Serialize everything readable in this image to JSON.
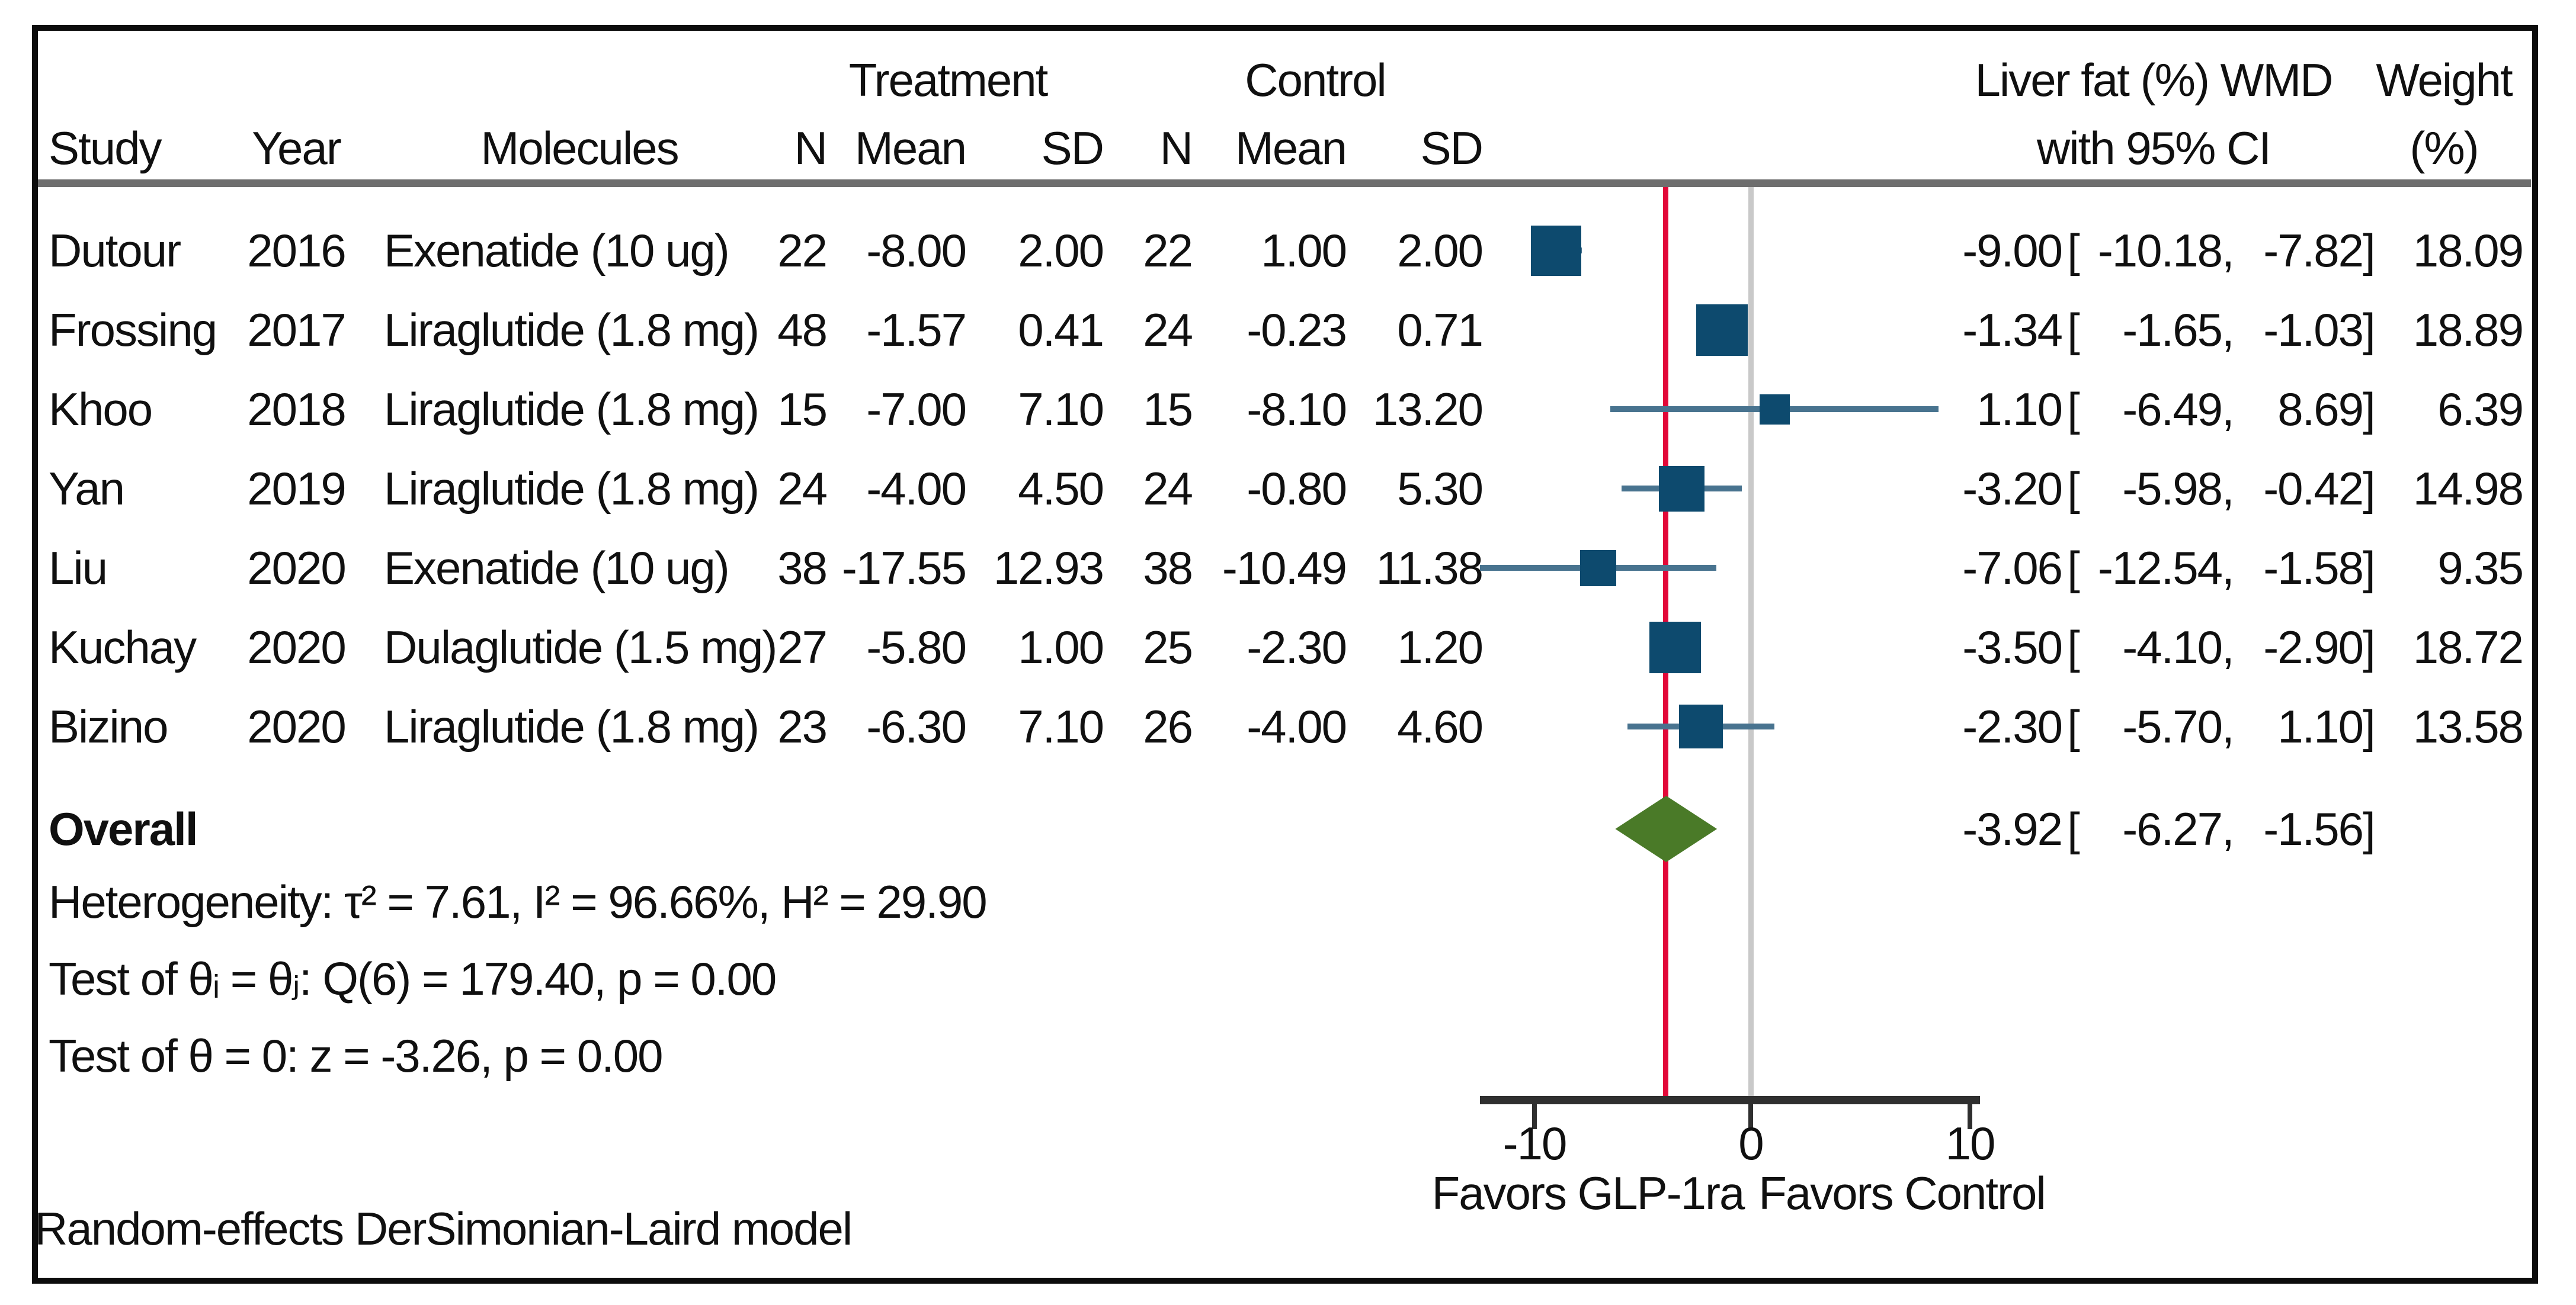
{
  "header": {
    "group_treatment": "Treatment",
    "group_control": "Control",
    "col_study": "Study",
    "col_year": "Year",
    "col_molecules": "Molecules",
    "col_n": "N",
    "col_mean": "Mean",
    "col_sd": "SD",
    "effect_line1": "Liver fat (%) WMD",
    "effect_line2": "with 95% CI",
    "weight_line1": "Weight",
    "weight_line2": "(%)"
  },
  "studies": [
    {
      "study": "Dutour",
      "year": "2016",
      "molecules": "Exenatide (10 ug)",
      "n_t": "22",
      "mean_t": "-8.00",
      "sd_t": "2.00",
      "n_c": "22",
      "mean_c": "1.00",
      "sd_c": "2.00",
      "est": "-9.00",
      "lo": "-10.18",
      "hi": "-7.82",
      "weight": "18.09"
    },
    {
      "study": "Frossing",
      "year": "2017",
      "molecules": "Liraglutide (1.8 mg)",
      "n_t": "48",
      "mean_t": "-1.57",
      "sd_t": "0.41",
      "n_c": "24",
      "mean_c": "-0.23",
      "sd_c": "0.71",
      "est": "-1.34",
      "lo": "-1.65",
      "hi": "-1.03",
      "weight": "18.89"
    },
    {
      "study": "Khoo",
      "year": "2018",
      "molecules": "Liraglutide (1.8 mg)",
      "n_t": "15",
      "mean_t": "-7.00",
      "sd_t": "7.10",
      "n_c": "15",
      "mean_c": "-8.10",
      "sd_c": "13.20",
      "est": "1.10",
      "lo": "-6.49",
      "hi": "8.69",
      "weight": "6.39"
    },
    {
      "study": "Yan",
      "year": "2019",
      "molecules": "Liraglutide (1.8 mg)",
      "n_t": "24",
      "mean_t": "-4.00",
      "sd_t": "4.50",
      "n_c": "24",
      "mean_c": "-0.80",
      "sd_c": "5.30",
      "est": "-3.20",
      "lo": "-5.98",
      "hi": "-0.42",
      "weight": "14.98"
    },
    {
      "study": "Liu",
      "year": "2020",
      "molecules": "Exenatide (10 ug)",
      "n_t": "38",
      "mean_t": "-17.55",
      "sd_t": "12.93",
      "n_c": "38",
      "mean_c": "-10.49",
      "sd_c": "11.38",
      "est": "-7.06",
      "lo": "-12.54",
      "hi": "-1.58",
      "weight": "9.35"
    },
    {
      "study": "Kuchay",
      "year": "2020",
      "molecules": "Dulaglutide (1.5 mg)",
      "n_t": "27",
      "mean_t": "-5.80",
      "sd_t": "1.00",
      "n_c": "25",
      "mean_c": "-2.30",
      "sd_c": "1.20",
      "est": "-3.50",
      "lo": "-4.10",
      "hi": "-2.90",
      "weight": "18.72"
    },
    {
      "study": "Bizino",
      "year": "2020",
      "molecules": "Liraglutide (1.8 mg)",
      "n_t": "23",
      "mean_t": "-6.30",
      "sd_t": "7.10",
      "n_c": "26",
      "mean_c": "-4.00",
      "sd_c": "4.60",
      "est": "-2.30",
      "lo": "-5.70",
      "hi": "1.10",
      "weight": "13.58"
    }
  ],
  "overall": {
    "label": "Overall",
    "est": "-3.92",
    "lo": "-6.27",
    "hi": "-1.56"
  },
  "stats": {
    "heterogeneity": "Heterogeneity: τ² = 7.61, I² = 96.66%, H² = 29.90",
    "test_q": "Test of θᵢ = θⱼ: Q(6) = 179.40, p = 0.00",
    "test_z": "Test of θ = 0: z = -3.26, p = 0.00"
  },
  "axis": {
    "ticks": [
      "-10",
      "0",
      "10"
    ],
    "favors_left": "Favors GLP-1ra",
    "favors_right": "Favors Control"
  },
  "footnote": "Random-effects DerSimonian-Laird model",
  "colors": {
    "marker": "#0d4a6e",
    "ci": "#48738f",
    "diamond": "#4a7a28",
    "pooled": "#e20839",
    "zero": "#c9c9c9"
  },
  "chart_data": {
    "type": "forest",
    "title": "Liver fat (%) WMD with 95% CI",
    "xlabel_ticks": [
      -10,
      0,
      10
    ],
    "xlim": [
      -12.54,
      10.5
    ],
    "zero_reference": 0,
    "pooled_reference": -3.92,
    "favors_left": "Favors GLP-1ra",
    "favors_right": "Favors Control",
    "studies": [
      {
        "name": "Dutour 2016",
        "est": -9.0,
        "lo": -10.18,
        "hi": -7.82,
        "weight": 18.09
      },
      {
        "name": "Frossing 2017",
        "est": -1.34,
        "lo": -1.65,
        "hi": -1.03,
        "weight": 18.89
      },
      {
        "name": "Khoo 2018",
        "est": 1.1,
        "lo": -6.49,
        "hi": 8.69,
        "weight": 6.39
      },
      {
        "name": "Yan 2019",
        "est": -3.2,
        "lo": -5.98,
        "hi": -0.42,
        "weight": 14.98
      },
      {
        "name": "Liu 2020",
        "est": -7.06,
        "lo": -12.54,
        "hi": -1.58,
        "weight": 9.35
      },
      {
        "name": "Kuchay 2020",
        "est": -3.5,
        "lo": -4.1,
        "hi": -2.9,
        "weight": 18.72
      },
      {
        "name": "Bizino 2020",
        "est": -2.3,
        "lo": -5.7,
        "hi": 1.1,
        "weight": 13.58
      }
    ],
    "overall": {
      "est": -3.92,
      "lo": -6.27,
      "hi": -1.56
    },
    "model": "Random-effects DerSimonian-Laird model",
    "heterogeneity": {
      "tau2": 7.61,
      "I2_pct": 96.66,
      "H2": 29.9,
      "Q_df": 6,
      "Q": 179.4,
      "p_Q": 0.0,
      "z": -3.26,
      "p_z": 0.0
    }
  }
}
